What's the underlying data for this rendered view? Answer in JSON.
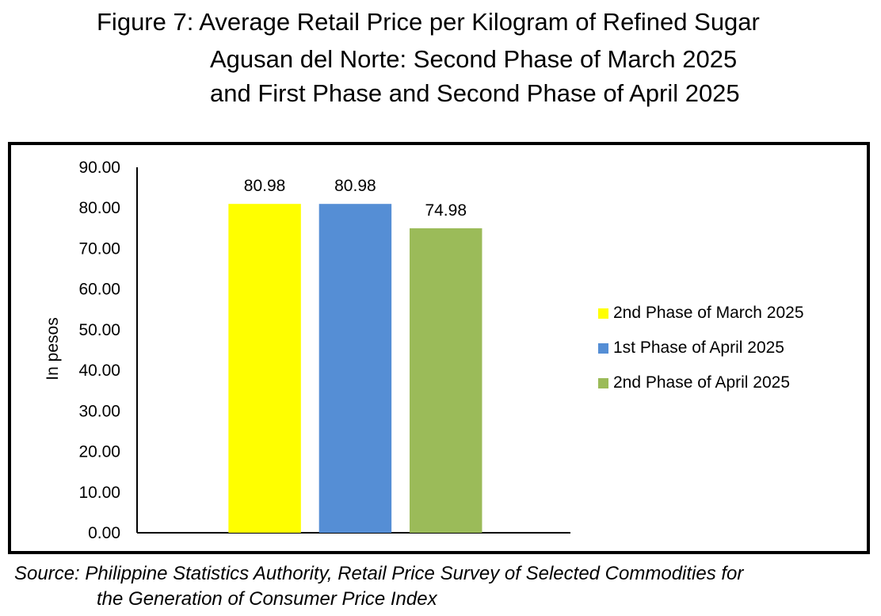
{
  "title": {
    "line1": "Figure 7: Average Retail Price per Kilogram of Refined Sugar",
    "line2": "Agusan del Norte: Second Phase of March 2025",
    "line3": "and First Phase and Second Phase of April 2025"
  },
  "source": {
    "line1": "Source: Philippine Statistics Authority, Retail Price Survey of Selected Commodities for",
    "line2": "the Generation of Consumer Price Index"
  },
  "chart_data": {
    "type": "bar",
    "title": "Figure 7: Average Retail Price per Kilogram of Refined Sugar Agusan del Norte: Second Phase of March 2025 and First Phase and Second Phase of April 2025",
    "xlabel": "",
    "ylabel": "In pesos",
    "ylim": [
      0,
      90
    ],
    "yticks": [
      "0.00",
      "10.00",
      "20.00",
      "30.00",
      "40.00",
      "50.00",
      "60.00",
      "70.00",
      "80.00",
      "90.00"
    ],
    "grid": false,
    "legend_position": "right",
    "series": [
      {
        "name": "2nd Phase of March 2025",
        "value": 80.98,
        "label": "80.98",
        "color": "#ffff00"
      },
      {
        "name": "1st Phase of April 2025",
        "value": 80.98,
        "label": "80.98",
        "color": "#558ed5"
      },
      {
        "name": "2nd Phase of April 2025",
        "value": 74.98,
        "label": "74.98",
        "color": "#9bbb59"
      }
    ]
  }
}
